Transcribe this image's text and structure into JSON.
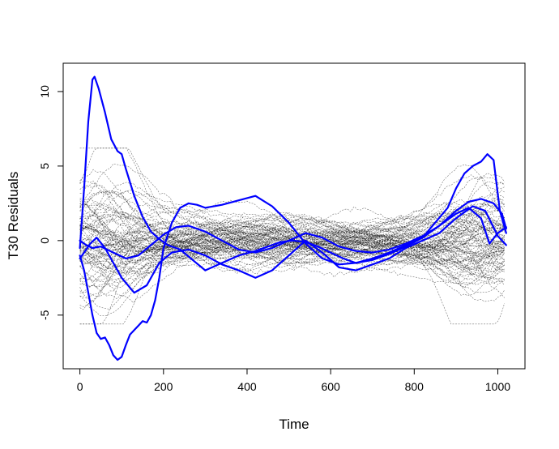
{
  "chart_data": {
    "type": "line",
    "title": "",
    "xlabel": "Time",
    "ylabel": "T30 Residuals",
    "xlim": [
      -40,
      1065
    ],
    "ylim": [
      -8.6,
      11.9
    ],
    "x_ticks": [
      0,
      200,
      400,
      600,
      800,
      1000
    ],
    "x_tick_labels": [
      "0",
      "200",
      "400",
      "600",
      "800",
      "1000"
    ],
    "y_ticks": [
      -5,
      0,
      5,
      10
    ],
    "y_tick_labels": [
      "-5",
      "0",
      "5",
      "10"
    ],
    "grid": false,
    "legend": "none",
    "background_series": {
      "count": 90,
      "color": "#000000",
      "line_style": "dashed",
      "x_range": [
        0,
        1023
      ],
      "note_values": "dense bundle of residual curves centred on 0, spread about ±3 near the ends and about ±1.5 in the middle"
    },
    "series": [
      {
        "color": "#0000ff",
        "x": [
          0,
          10,
          20,
          30,
          35,
          45,
          60,
          75,
          90,
          100,
          110,
          130,
          150,
          170,
          190,
          210,
          240,
          270,
          300,
          340,
          380,
          420,
          450,
          480,
          510,
          540,
          570,
          600,
          630,
          660,
          700,
          740,
          780,
          820,
          850,
          880,
          900,
          920,
          940,
          960,
          975,
          990,
          1005,
          1020
        ],
        "values": [
          -0.5,
          3.5,
          8.0,
          10.8,
          11.0,
          10.2,
          8.6,
          6.8,
          6.0,
          5.8,
          4.8,
          3.0,
          1.6,
          0.6,
          0.1,
          -0.3,
          -0.6,
          -1.3,
          -2.0,
          -1.5,
          -1.0,
          -0.7,
          -0.4,
          -0.1,
          0.0,
          -0.1,
          -0.4,
          -0.8,
          -1.2,
          -1.5,
          -1.3,
          -0.9,
          -0.4,
          0.2,
          1.2,
          2.2,
          3.5,
          4.5,
          5.0,
          5.3,
          5.8,
          5.4,
          2.0,
          0.5
        ]
      },
      {
        "color": "#0000ff",
        "x": [
          0,
          10,
          20,
          30,
          40,
          50,
          60,
          70,
          80,
          90,
          100,
          110,
          120,
          130,
          140,
          150,
          160,
          170,
          180,
          190,
          200,
          220,
          240,
          260,
          280,
          300,
          340,
          380,
          420,
          460,
          500,
          540,
          580,
          620,
          660,
          700,
          740,
          780,
          820,
          860,
          900,
          930,
          960,
          990,
          1010,
          1020
        ],
        "values": [
          -1.0,
          -2.0,
          -3.5,
          -5.0,
          -6.2,
          -6.6,
          -6.5,
          -7.0,
          -7.7,
          -8.0,
          -7.8,
          -7.0,
          -6.3,
          -6.0,
          -5.7,
          -5.4,
          -5.5,
          -5.0,
          -4.0,
          -2.5,
          -0.5,
          1.2,
          2.2,
          2.5,
          2.4,
          2.2,
          2.4,
          2.7,
          3.0,
          2.3,
          1.2,
          -0.2,
          -1.2,
          -1.6,
          -1.5,
          -1.2,
          -0.8,
          -0.3,
          0.2,
          1.0,
          2.0,
          2.6,
          2.8,
          2.5,
          1.8,
          0.8
        ]
      },
      {
        "color": "#0000ff",
        "x": [
          0,
          15,
          30,
          50,
          80,
          110,
          140,
          170,
          200,
          230,
          260,
          300,
          340,
          380,
          420,
          460,
          500,
          540,
          580,
          620,
          660,
          700,
          740,
          780,
          820,
          860,
          900,
          930,
          960,
          980,
          1000,
          1020
        ],
        "values": [
          0.0,
          -0.3,
          -0.5,
          -0.4,
          -0.8,
          -1.2,
          -1.0,
          -0.3,
          0.4,
          0.9,
          1.0,
          0.6,
          0.0,
          -0.6,
          -0.8,
          -0.5,
          0.0,
          0.5,
          0.2,
          -0.4,
          -0.7,
          -0.8,
          -0.6,
          -0.2,
          0.3,
          1.0,
          1.8,
          2.2,
          1.5,
          -0.2,
          0.5,
          0.9
        ]
      },
      {
        "color": "#0000ff",
        "x": [
          0,
          10,
          25,
          40,
          60,
          80,
          100,
          130,
          160,
          190,
          220,
          260,
          300,
          340,
          380,
          420,
          460,
          500,
          540,
          580,
          620,
          660,
          700,
          740,
          780,
          820,
          860,
          900,
          940,
          970,
          1000,
          1020
        ],
        "values": [
          -1.2,
          -0.8,
          -0.2,
          0.2,
          -0.5,
          -1.5,
          -2.5,
          -3.5,
          -3.0,
          -1.5,
          -0.8,
          -0.6,
          -1.0,
          -1.6,
          -2.0,
          -2.5,
          -2.0,
          -1.0,
          0.0,
          -0.8,
          -1.8,
          -2.0,
          -1.6,
          -1.2,
          -0.5,
          0.0,
          0.5,
          1.5,
          2.3,
          2.0,
          0.3,
          -0.3
        ]
      }
    ]
  }
}
